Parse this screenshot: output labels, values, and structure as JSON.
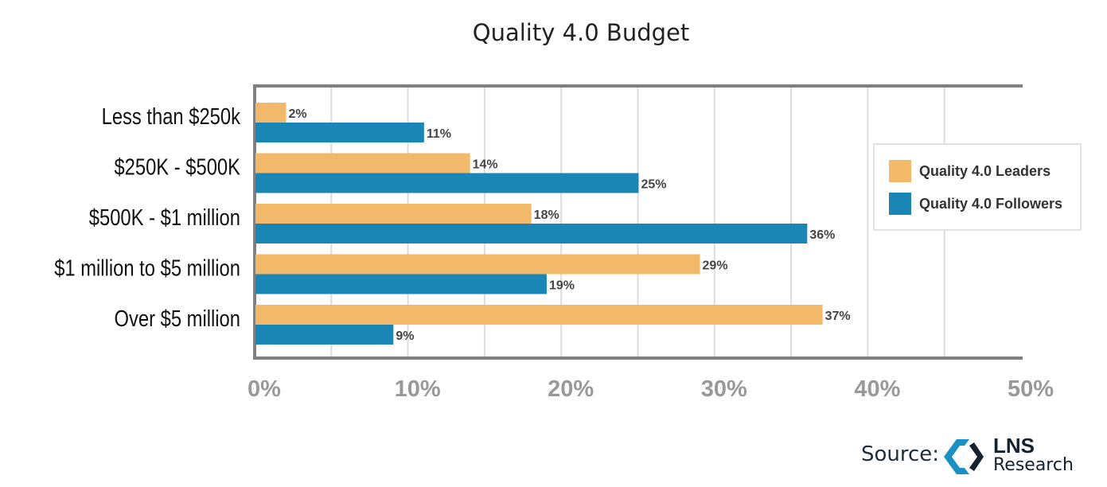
{
  "chart_data": {
    "type": "bar",
    "orientation": "horizontal",
    "title": "Quality 4.0 Budget",
    "categories": [
      "Less than $250k",
      "$250K - $500K",
      "$500K - $1 million",
      "$1 million to $5 million",
      "Over $5 million"
    ],
    "series": [
      {
        "name": "Quality 4.0 Leaders",
        "color": "#f2b96b",
        "values": [
          2,
          14,
          18,
          29,
          37
        ],
        "labels": [
          "2%",
          "14%",
          "18%",
          "29%",
          "37%"
        ]
      },
      {
        "name": "Quality 4.0 Followers",
        "color": "#1a86b5",
        "values": [
          11,
          25,
          36,
          19,
          9
        ],
        "labels": [
          "11%",
          "25%",
          "36%",
          "19%",
          "9%"
        ]
      }
    ],
    "xlim": [
      0,
      50
    ],
    "ticks": [
      "0%",
      "10%",
      "20%",
      "30%",
      "40%",
      "50%"
    ],
    "grid": true,
    "legend_position": "right"
  },
  "source": {
    "label": "Source:",
    "brand_top": "LNS",
    "brand_bottom": "Research"
  }
}
